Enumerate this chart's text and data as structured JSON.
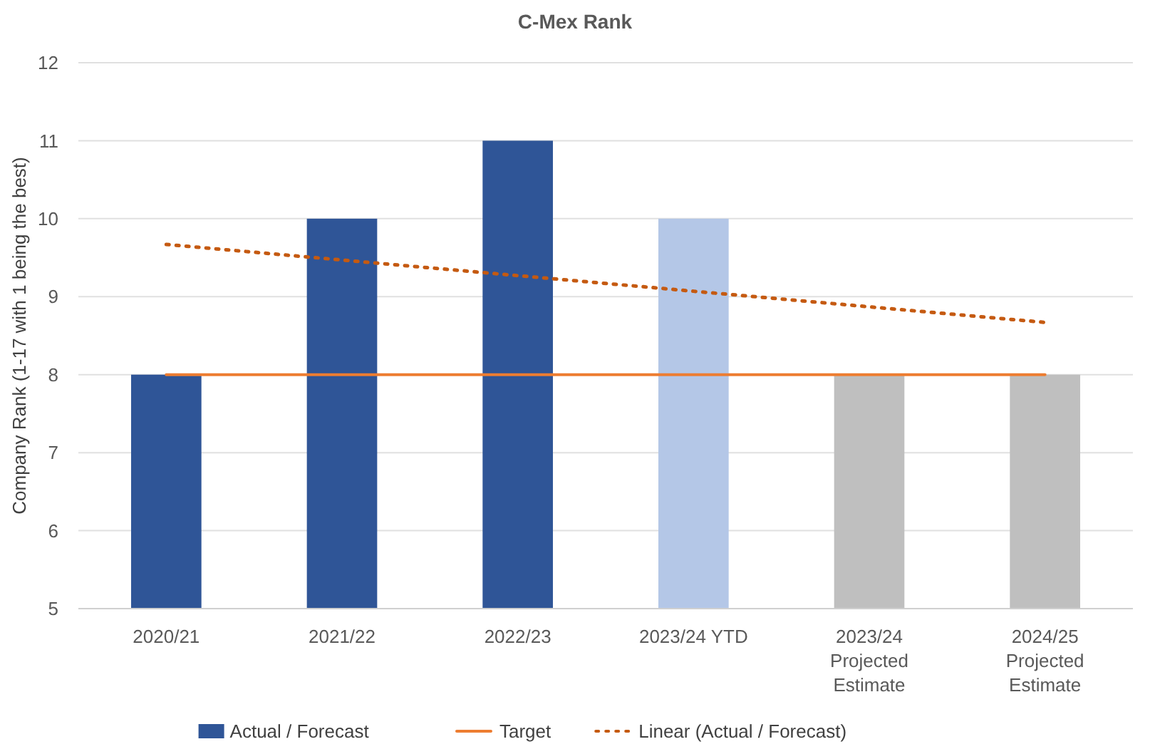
{
  "chart_data": {
    "type": "bar",
    "title": "C-Mex Rank",
    "ylabel": "Company Rank (1-17 with 1 being the best)",
    "categories": [
      "2020/21",
      "2021/22",
      "2022/23",
      "2023/24 YTD",
      "2023/24\nProjected\nEstimate",
      "2024/25\nProjected\nEstimate"
    ],
    "series": [
      {
        "name": "Actual / Forecast",
        "color": "#2f5597",
        "colors": [
          "#2f5597",
          "#2f5597",
          "#2f5597",
          "#b4c7e7",
          "#bfbfbf",
          "#bfbfbf"
        ],
        "values": [
          8,
          10,
          11,
          10,
          8,
          8
        ]
      },
      {
        "name": "Target",
        "type": "line",
        "color": "#ed7d31",
        "line_style": "solid",
        "values": [
          8,
          8,
          8,
          8,
          8,
          8
        ]
      },
      {
        "name": "Linear (Actual / Forecast)",
        "type": "line",
        "color": "#c55a11",
        "line_style": "dotted",
        "values": [
          9.67,
          9.47,
          9.27,
          9.07,
          8.87,
          8.67
        ]
      }
    ],
    "ylim": [
      5,
      12
    ],
    "yticks": [
      5,
      6,
      7,
      8,
      9,
      10,
      11,
      12
    ],
    "grid": "y",
    "legend": "bottom"
  }
}
